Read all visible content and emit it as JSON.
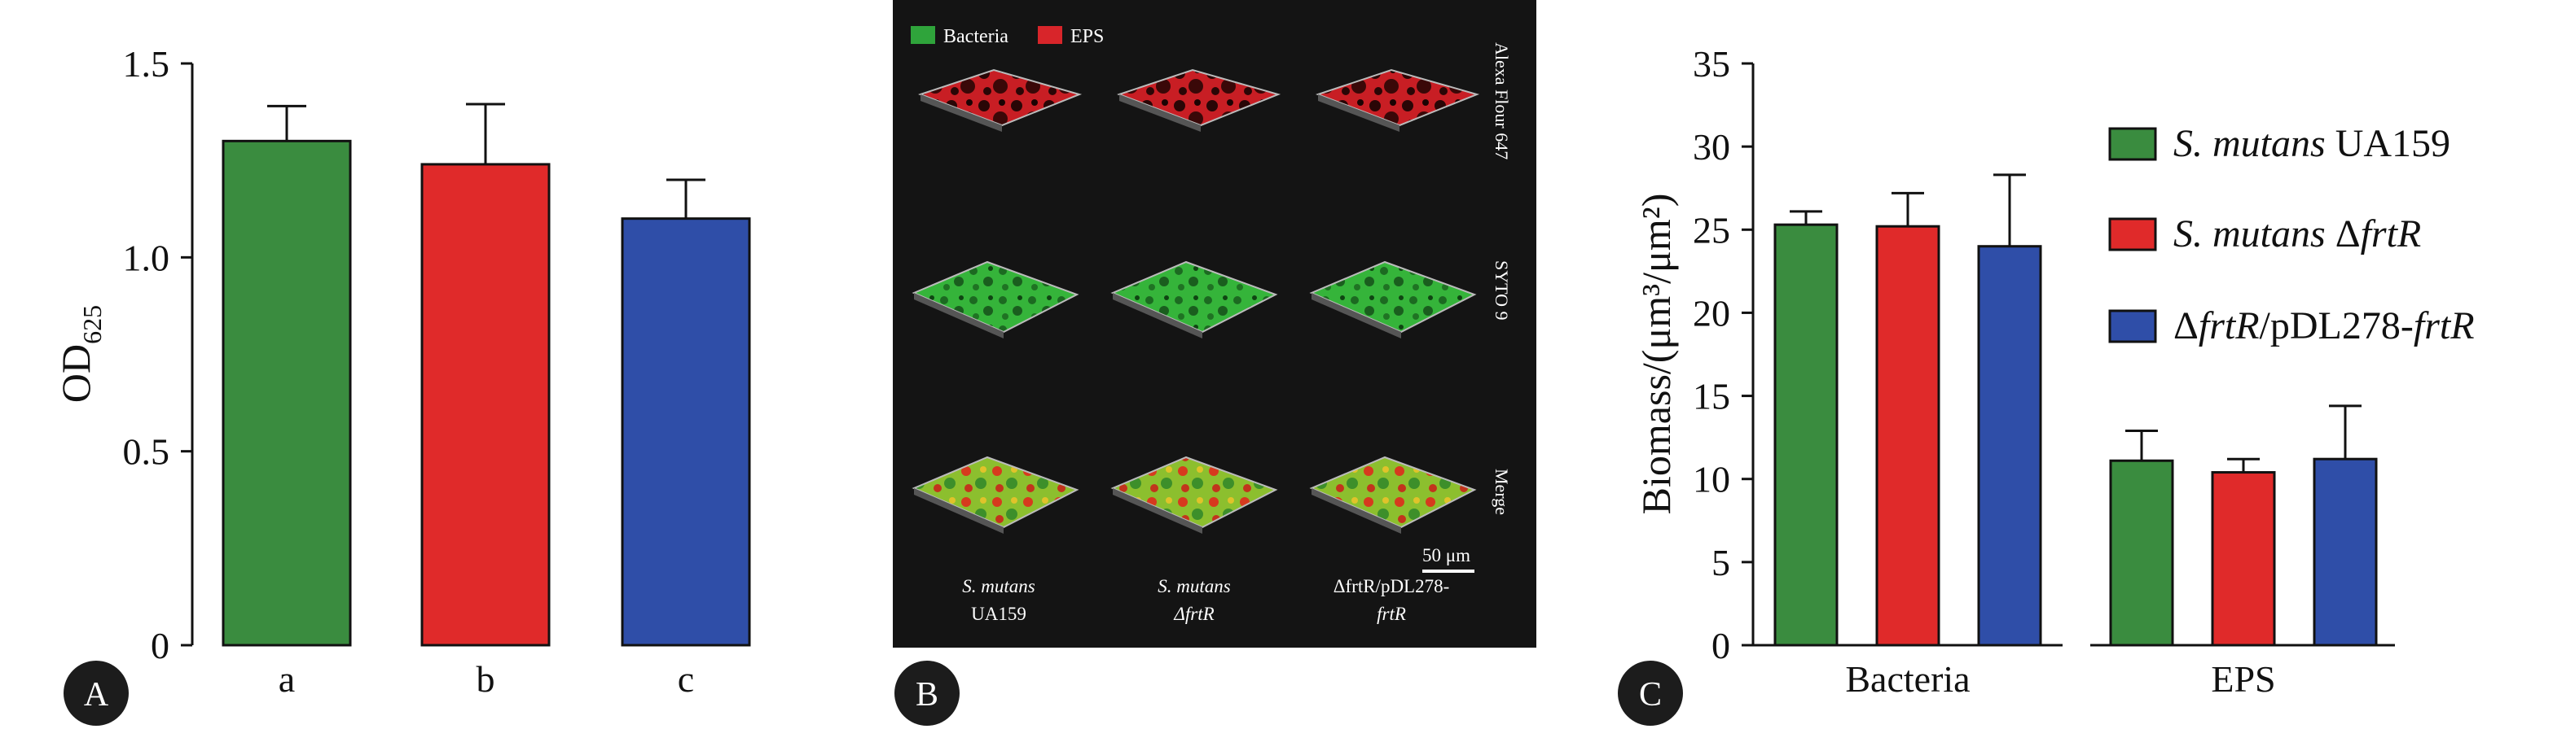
{
  "colors": {
    "green": "#3a8c3f",
    "red": "#e02a2a",
    "blue": "#2f4ea8",
    "micro_bg": "#141414",
    "panel_badge": "#1c1c1c"
  },
  "panel_labels": [
    "A",
    "B",
    "C"
  ],
  "microscopy": {
    "legend": [
      {
        "label": "Bacteria",
        "color": "#2fa43b"
      },
      {
        "label": "EPS",
        "color": "#d8252a"
      }
    ],
    "row_labels": [
      "Alexa Flour 647",
      "SYTO 9",
      "Merge"
    ],
    "col_labels": [
      {
        "line1": "S. mutans",
        "line2": "UA159"
      },
      {
        "line1": "S. mutans",
        "line2": "ΔfrtR"
      },
      {
        "line1": "ΔfrtR/pDL278-",
        "line2": "frtR"
      }
    ],
    "scale_bar": "50 μm"
  },
  "chart_data": [
    {
      "type": "bar",
      "panel": "A",
      "categories": [
        "a",
        "b",
        "c"
      ],
      "values": [
        1.3,
        1.24,
        1.1
      ],
      "errors": [
        0.09,
        0.155,
        0.1
      ],
      "colors": [
        "#3a8c3f",
        "#e02a2a",
        "#2f4ea8"
      ],
      "ylabel_main": "OD",
      "ylabel_sub": "625",
      "ylim": [
        0,
        1.5
      ],
      "yticks": [
        0,
        0.5,
        1.0,
        1.5
      ],
      "ytick_labels": [
        "0",
        "0.5",
        "1.0",
        "1.5"
      ]
    },
    {
      "type": "bar",
      "panel": "C",
      "categories": [
        "Bacteria",
        "EPS"
      ],
      "ylabel": "Biomass/(μm³/μm²)",
      "ylim": [
        0,
        35
      ],
      "yticks": [
        0,
        5,
        10,
        15,
        20,
        25,
        30,
        35
      ],
      "series": [
        {
          "name": "S. mutans UA159",
          "name_italic": "S. mutans",
          "name_rest": " UA159",
          "color": "#3a8c3f",
          "values": [
            25.3,
            11.1
          ],
          "errors": [
            0.8,
            1.8
          ]
        },
        {
          "name": "S. mutans ΔfrtR",
          "name_italic": "S. mutans",
          "name_rest": " ΔfrtR",
          "color": "#e02a2a",
          "values": [
            25.2,
            10.4
          ],
          "errors": [
            2.0,
            0.8
          ]
        },
        {
          "name": "ΔfrtR/pDL278-frtR",
          "name_italic": "",
          "name_rest": "ΔfrtR/pDL278-frtR",
          "color": "#2f4ea8",
          "values": [
            24.0,
            11.2
          ],
          "errors": [
            4.3,
            3.2
          ]
        }
      ],
      "legend_position": "right"
    }
  ]
}
